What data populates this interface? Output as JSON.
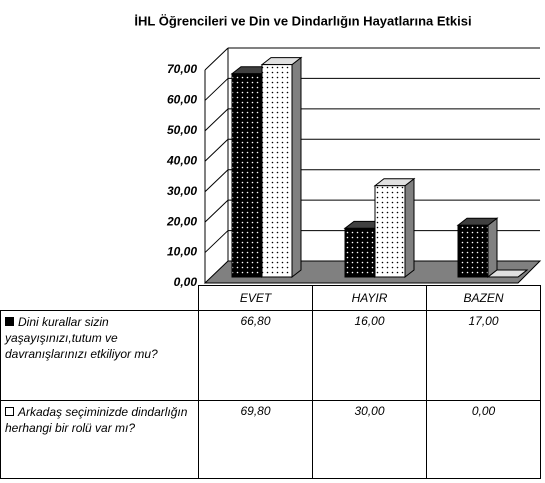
{
  "chart_data": {
    "type": "bar",
    "title": "İHL Öğrencileri ve Din ve Dindarlığın Hayatlarına Etkisi",
    "categories": [
      "EVET",
      "HAYIR",
      "BAZEN"
    ],
    "series": [
      {
        "name": "Dini kurallar sizin yaşayışınızı,tutum ve davranışlarınızı etkiliyor mu?",
        "color": "#000000",
        "values": [
          66.8,
          16,
          17
        ],
        "value_labels": [
          "66,80",
          "16,00",
          "17,00"
        ]
      },
      {
        "name": "Arkadaş seçiminizde dindarlığın herhangi bir rolü var mı?",
        "color": "#ffffff",
        "values": [
          69.8,
          30,
          0
        ],
        "value_labels": [
          "69,80",
          "30,00",
          "0,00"
        ]
      }
    ],
    "ylim": [
      0,
      70
    ],
    "yticks": [
      {
        "value": 0,
        "label": "0,00"
      },
      {
        "value": 10,
        "label": "10,00"
      },
      {
        "value": 20,
        "label": "20,00"
      },
      {
        "value": 30,
        "label": "30,00"
      },
      {
        "value": 40,
        "label": "40,00"
      },
      {
        "value": 50,
        "label": "50,00"
      },
      {
        "value": 60,
        "label": "60,00"
      },
      {
        "value": 70,
        "label": "70,00"
      }
    ],
    "grid": true
  }
}
